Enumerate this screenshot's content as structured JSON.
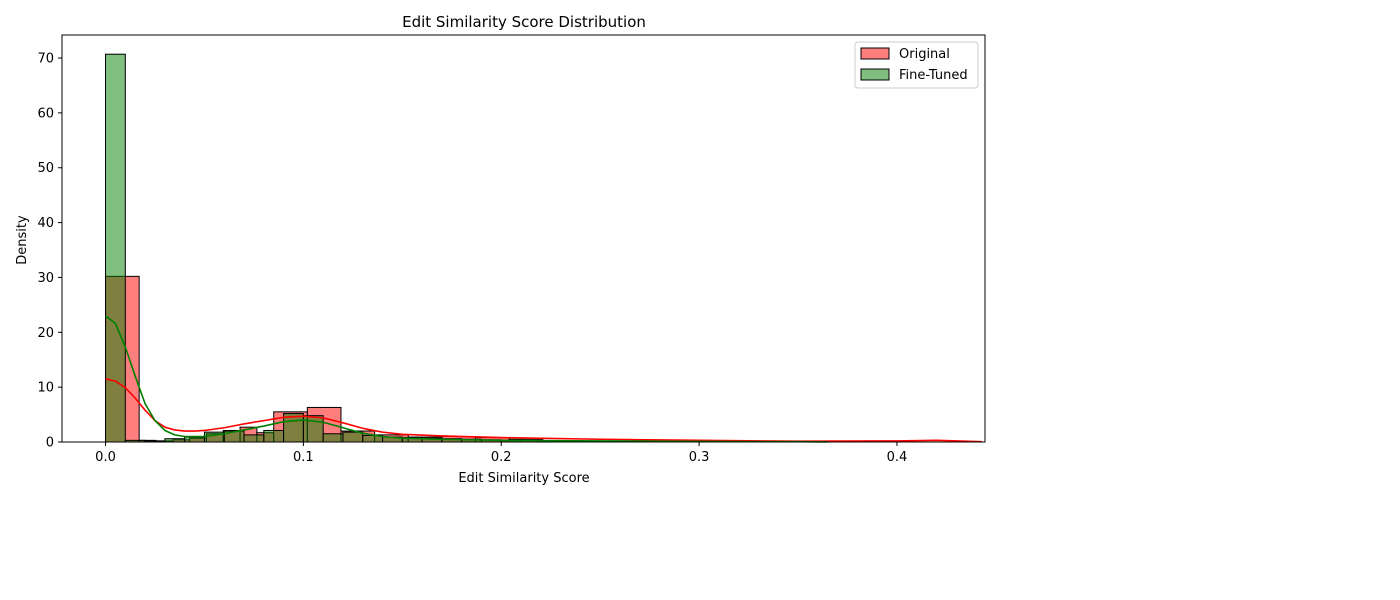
{
  "chart_data": {
    "type": "histogram",
    "title": "Edit Similarity Score Distribution",
    "xlabel": "Edit Similarity Score",
    "ylabel": "Density",
    "xlim": [
      -0.022,
      0.4445
    ],
    "ylim": [
      0,
      74.2
    ],
    "xticks": [
      0.0,
      0.1,
      0.2,
      0.3,
      0.4
    ],
    "xtick_labels": [
      "0.0",
      "0.1",
      "0.2",
      "0.3",
      "0.4"
    ],
    "yticks": [
      0,
      10,
      20,
      30,
      40,
      50,
      60,
      70
    ],
    "ytick_labels": [
      "0",
      "10",
      "20",
      "30",
      "40",
      "50",
      "60",
      "70"
    ],
    "grid": false,
    "legend": {
      "position": "top-right",
      "entries": [
        "Original",
        "Fine-Tuned"
      ]
    },
    "series": [
      {
        "name": "Original",
        "color": "#ff0000",
        "bar_fill": "#ff7f7f",
        "bins": [
          [
            0.0,
            0.017,
            30.2
          ],
          [
            0.017,
            0.0255,
            0.3
          ],
          [
            0.0255,
            0.034,
            0.2
          ],
          [
            0.034,
            0.0425,
            0.4
          ],
          [
            0.0425,
            0.051,
            0.7
          ],
          [
            0.051,
            0.0595,
            1.5
          ],
          [
            0.0595,
            0.068,
            2.1
          ],
          [
            0.068,
            0.0765,
            2.7
          ],
          [
            0.0765,
            0.085,
            1.7
          ],
          [
            0.085,
            0.102,
            5.5
          ],
          [
            0.102,
            0.119,
            6.3
          ],
          [
            0.119,
            0.136,
            2.0
          ],
          [
            0.136,
            0.153,
            1.3
          ],
          [
            0.153,
            0.17,
            0.9
          ],
          [
            0.17,
            0.187,
            1.0
          ],
          [
            0.187,
            0.204,
            0.8
          ],
          [
            0.204,
            0.221,
            0.5
          ]
        ],
        "kde_x": [
          0.0,
          0.005,
          0.01,
          0.015,
          0.02,
          0.025,
          0.03,
          0.035,
          0.04,
          0.045,
          0.05,
          0.06,
          0.07,
          0.08,
          0.09,
          0.1,
          0.11,
          0.12,
          0.13,
          0.14,
          0.15,
          0.17,
          0.2,
          0.25,
          0.3,
          0.35,
          0.4,
          0.42,
          0.443
        ],
        "kde_y": [
          11.5,
          11.1,
          9.9,
          8.0,
          5.8,
          3.9,
          2.7,
          2.2,
          2.0,
          2.0,
          2.1,
          2.6,
          3.3,
          3.9,
          4.5,
          4.7,
          4.4,
          3.5,
          2.5,
          1.8,
          1.4,
          1.1,
          0.8,
          0.5,
          0.3,
          0.15,
          0.2,
          0.3,
          0.05
        ]
      },
      {
        "name": "Fine-Tuned",
        "color": "#008000",
        "bar_fill": "#80bf80",
        "bins": [
          [
            0.0,
            0.01,
            70.7
          ],
          [
            0.01,
            0.02,
            0.3
          ],
          [
            0.02,
            0.03,
            0.2
          ],
          [
            0.03,
            0.04,
            0.6
          ],
          [
            0.04,
            0.05,
            0.9
          ],
          [
            0.05,
            0.06,
            1.8
          ],
          [
            0.06,
            0.07,
            2.0
          ],
          [
            0.07,
            0.08,
            1.3
          ],
          [
            0.08,
            0.09,
            2.1
          ],
          [
            0.09,
            0.1,
            5.2
          ],
          [
            0.1,
            0.11,
            4.8
          ],
          [
            0.11,
            0.12,
            1.5
          ],
          [
            0.12,
            0.13,
            1.8
          ],
          [
            0.13,
            0.14,
            1.2
          ],
          [
            0.14,
            0.15,
            0.9
          ],
          [
            0.15,
            0.16,
            0.8
          ],
          [
            0.16,
            0.17,
            0.7
          ],
          [
            0.17,
            0.18,
            0.6
          ],
          [
            0.18,
            0.19,
            0.5
          ],
          [
            0.19,
            0.2,
            0.4
          ],
          [
            0.2,
            0.21,
            0.3
          ]
        ],
        "kde_x": [
          0.0,
          0.005,
          0.01,
          0.015,
          0.02,
          0.025,
          0.03,
          0.035,
          0.04,
          0.05,
          0.06,
          0.07,
          0.08,
          0.09,
          0.1,
          0.11,
          0.12,
          0.13,
          0.14,
          0.15,
          0.17,
          0.2,
          0.25,
          0.3,
          0.35,
          0.365
        ],
        "kde_y": [
          23.0,
          21.6,
          17.3,
          12.0,
          7.0,
          3.9,
          2.1,
          1.3,
          1.0,
          1.0,
          1.5,
          2.2,
          2.9,
          3.7,
          4.0,
          3.6,
          2.6,
          1.6,
          1.0,
          0.7,
          0.5,
          0.3,
          0.2,
          0.1,
          0.05,
          0.02
        ]
      }
    ]
  }
}
